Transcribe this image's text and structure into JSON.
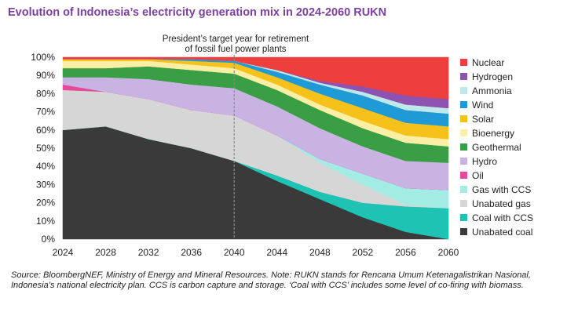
{
  "chart_data": {
    "type": "area",
    "title": "Evolution of Indonesia’s electricity generation mix in 2024-2060 RUKN",
    "annotation": [
      "President’s target year for retirement",
      "of fossil fuel power plants"
    ],
    "annotation_x": 2040,
    "xlabel": "",
    "ylabel": "",
    "xlim": [
      2024,
      2060
    ],
    "ylim": [
      0,
      100
    ],
    "x_ticks": [
      "2024",
      "2028",
      "2032",
      "2036",
      "2040",
      "2044",
      "2048",
      "2052",
      "2056",
      "2060"
    ],
    "y_ticks": [
      "0%",
      "10%",
      "20%",
      "30%",
      "40%",
      "50%",
      "60%",
      "70%",
      "80%",
      "90%",
      "100%"
    ],
    "legend_position": "right",
    "x": [
      2024,
      2028,
      2032,
      2036,
      2040,
      2044,
      2048,
      2052,
      2056,
      2060
    ],
    "series": [
      {
        "name": "Unabated coal",
        "color": "#3a3a3a",
        "values": [
          60,
          62,
          55,
          50,
          43,
          32,
          22,
          12,
          4,
          0
        ]
      },
      {
        "name": "Coal with CCS",
        "color": "#1ec3b4",
        "values": [
          0,
          0,
          0,
          0,
          0,
          3,
          4,
          8,
          14,
          17
        ]
      },
      {
        "name": "Unabated gas",
        "color": "#d6d6d6",
        "values": [
          22,
          19,
          22,
          21,
          25,
          22,
          16,
          10,
          1,
          0
        ]
      },
      {
        "name": "Gas with CCS",
        "color": "#a3ece4",
        "values": [
          0,
          0,
          0,
          0,
          0,
          0,
          2,
          6,
          9,
          10
        ]
      },
      {
        "name": "Oil",
        "color": "#e8489b",
        "values": [
          3,
          0,
          0,
          0,
          0,
          0,
          0,
          0,
          0,
          0
        ]
      },
      {
        "name": "Hydro",
        "color": "#c9b3e3",
        "values": [
          4,
          8,
          11,
          14,
          15,
          16,
          17,
          15,
          15,
          15
        ]
      },
      {
        "name": "Geothermal",
        "color": "#3a9e44",
        "values": [
          5,
          5,
          7,
          8,
          8,
          9,
          10,
          10,
          10,
          9
        ]
      },
      {
        "name": "Bioenergy",
        "color": "#fbefa6",
        "values": [
          4,
          4,
          3,
          3,
          3,
          3,
          3,
          4,
          4,
          4
        ]
      },
      {
        "name": "Solar",
        "color": "#f7c11b",
        "values": [
          1,
          1,
          1,
          2,
          3,
          4,
          6,
          7,
          7,
          7
        ]
      },
      {
        "name": "Wind",
        "color": "#1f9ad6",
        "values": [
          0,
          0,
          0,
          1,
          1,
          3,
          5,
          7,
          7,
          7
        ]
      },
      {
        "name": "Ammonia",
        "color": "#bfe8ea",
        "values": [
          0,
          0,
          0,
          0,
          0,
          1,
          1,
          2,
          3,
          3
        ]
      },
      {
        "name": "Hydrogen",
        "color": "#8e52b0",
        "values": [
          0,
          0,
          0,
          0,
          0,
          0,
          1,
          3,
          5,
          5
        ]
      },
      {
        "name": "Nuclear",
        "color": "#ee3f3f",
        "values": [
          1,
          1,
          1,
          1,
          2,
          7,
          13,
          16,
          21,
          23
        ]
      }
    ],
    "note": "Source: BloombergNEF, Ministry of Energy and Mineral Resources. Note: RUKN stands for Rencana Umum Ketenagalistrikan Nasional, Indonesia’s national electricity plan. CCS is carbon capture and storage. ‘Coal with CCS’ includes some level of co-firing with biomass."
  }
}
